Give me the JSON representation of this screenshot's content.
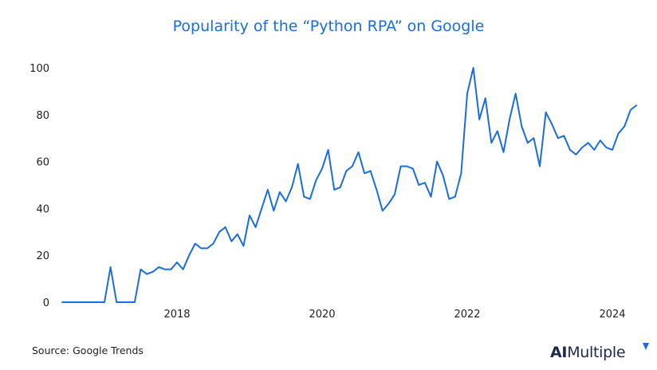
{
  "chart_data": {
    "type": "line",
    "title": "Popularity of the “Python RPA” on Google",
    "xlabel": "",
    "ylabel": "",
    "start_month": "2016-06",
    "end_month": "2024-05",
    "x_ticks": [
      "2018",
      "2020",
      "2022",
      "2024"
    ],
    "y_ticks": [
      0,
      20,
      40,
      60,
      80,
      100
    ],
    "ylim": [
      0,
      100
    ],
    "grid": false,
    "line_color": "#1a6ddb",
    "values": [
      0,
      0,
      0,
      0,
      0,
      0,
      0,
      0,
      15,
      0,
      0,
      0,
      0,
      14,
      12,
      13,
      15,
      14,
      14,
      17,
      14,
      20,
      25,
      23,
      23,
      25,
      30,
      32,
      26,
      29,
      24,
      37,
      32,
      40,
      48,
      39,
      47,
      43,
      49,
      59,
      45,
      44,
      52,
      57,
      65,
      48,
      49,
      56,
      58,
      64,
      55,
      56,
      48,
      39,
      42,
      46,
      58,
      58,
      57,
      50,
      51,
      45,
      60,
      54,
      44,
      45,
      55,
      89,
      100,
      78,
      87,
      68,
      73,
      64,
      78,
      89,
      75,
      68,
      70,
      58,
      81,
      76,
      70,
      71,
      65,
      63,
      66,
      68,
      65,
      69,
      66,
      65,
      72,
      75,
      82,
      84
    ]
  },
  "footer": {
    "source": "Source: Google Trends",
    "logo_ai": "AI",
    "logo_rest": "Multiple"
  }
}
